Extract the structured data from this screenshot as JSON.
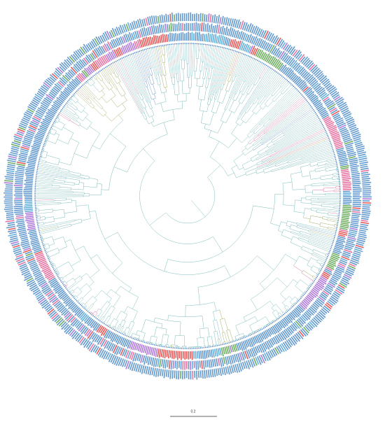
{
  "scale_bar": {
    "label": "0.2"
  }
}
